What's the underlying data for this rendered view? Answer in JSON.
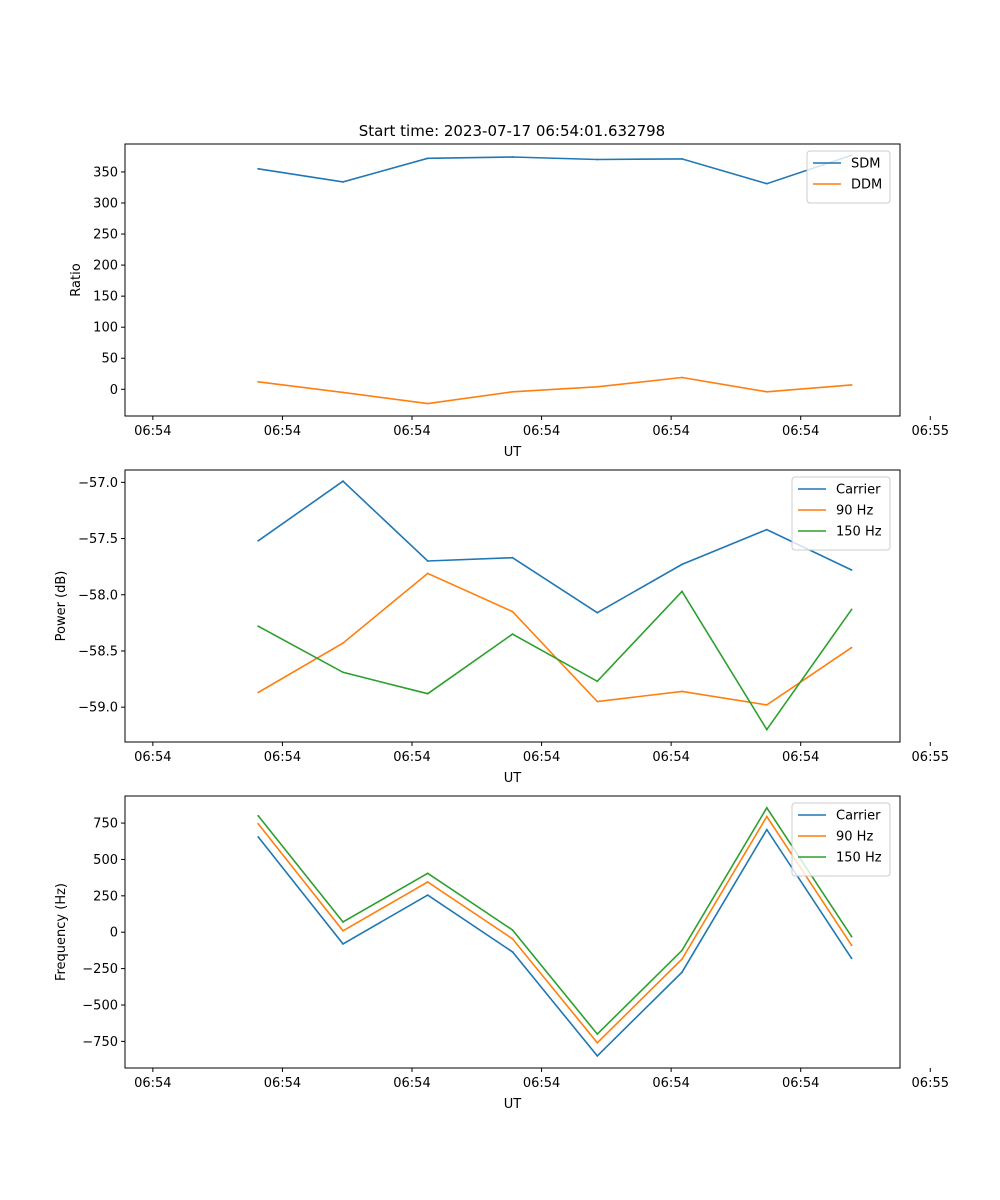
{
  "figure": {
    "title": "Start time: 2023-07-17 06:54:01.632798"
  },
  "chart_data": [
    {
      "type": "line",
      "title": "Start time: 2023-07-17 06:54:01.632798",
      "xlabel": "UT",
      "ylabel": "Ratio",
      "x": [
        1.6,
        2.3,
        3.0,
        3.7,
        4.4,
        5.1,
        5.8,
        6.5
      ],
      "xlim": [
        0.5,
        6.9
      ],
      "xticks": [
        0.73,
        1.8,
        2.87,
        3.94,
        5.01,
        6.08,
        7.15
      ],
      "xtick_labels": [
        "06:54",
        "06:54",
        "06:54",
        "06:54",
        "06:54",
        "06:54",
        "06:55"
      ],
      "ylim": [
        -43,
        395
      ],
      "yticks": [
        0,
        50,
        100,
        150,
        200,
        250,
        300,
        350
      ],
      "ytick_labels": [
        "0",
        "50",
        "100",
        "150",
        "200",
        "250",
        "300",
        "350"
      ],
      "legend_position": "top-right",
      "series": [
        {
          "name": "SDM",
          "color": "#1f77b4",
          "values": [
            355,
            334,
            372,
            374,
            370,
            371,
            331,
            377
          ]
        },
        {
          "name": "DDM",
          "color": "#ff7f0e",
          "values": [
            12,
            -5,
            -23,
            -4,
            4,
            19,
            -4,
            7
          ]
        }
      ]
    },
    {
      "type": "line",
      "xlabel": "UT",
      "ylabel": "Power (dB)",
      "x": [
        1.6,
        2.3,
        3.0,
        3.7,
        4.4,
        5.1,
        5.8,
        6.5
      ],
      "xlim": [
        0.5,
        6.9
      ],
      "xticks": [
        0.73,
        1.8,
        2.87,
        3.94,
        5.01,
        6.08,
        7.15
      ],
      "xtick_labels": [
        "06:54",
        "06:54",
        "06:54",
        "06:54",
        "06:54",
        "06:54",
        "06:55"
      ],
      "ylim": [
        -59.31,
        -56.89
      ],
      "yticks": [
        -59.0,
        -58.5,
        -58.0,
        -57.5,
        -57.0
      ],
      "ytick_labels": [
        "−59.0",
        "−58.5",
        "−58.0",
        "−57.5",
        "−57.0"
      ],
      "legend_position": "top-right",
      "series": [
        {
          "name": "Carrier",
          "color": "#1f77b4",
          "values": [
            -57.52,
            -56.99,
            -57.7,
            -57.67,
            -58.16,
            -57.73,
            -57.42,
            -57.78
          ]
        },
        {
          "name": "90 Hz",
          "color": "#ff7f0e",
          "values": [
            -58.87,
            -58.43,
            -57.81,
            -58.15,
            -58.95,
            -58.86,
            -58.98,
            -58.47
          ]
        },
        {
          "name": "150 Hz",
          "color": "#2ca02c",
          "values": [
            -58.28,
            -58.69,
            -58.88,
            -58.35,
            -58.77,
            -57.97,
            -59.2,
            -58.13
          ]
        }
      ]
    },
    {
      "type": "line",
      "xlabel": "UT",
      "ylabel": "Frequency (Hz)",
      "x": [
        1.6,
        2.3,
        3.0,
        3.7,
        4.4,
        5.1,
        5.8,
        6.5
      ],
      "xlim": [
        0.5,
        6.9
      ],
      "xticks": [
        0.73,
        1.8,
        2.87,
        3.94,
        5.01,
        6.08,
        7.15
      ],
      "xtick_labels": [
        "06:54",
        "06:54",
        "06:54",
        "06:54",
        "06:54",
        "06:54",
        "06:55"
      ],
      "ylim": [
        -933,
        936
      ],
      "yticks": [
        -750,
        -500,
        -250,
        0,
        250,
        500,
        750
      ],
      "ytick_labels": [
        "−750",
        "−500",
        "−250",
        "0",
        "250",
        "500",
        "750"
      ],
      "legend_position": "top-right",
      "series": [
        {
          "name": "Carrier",
          "color": "#1f77b4",
          "values": [
            655,
            -80,
            255,
            -135,
            -850,
            -275,
            705,
            -180
          ]
        },
        {
          "name": "90 Hz",
          "color": "#ff7f0e",
          "values": [
            745,
            10,
            345,
            -45,
            -760,
            -185,
            795,
            -90
          ]
        },
        {
          "name": "150 Hz",
          "color": "#2ca02c",
          "values": [
            800,
            70,
            405,
            15,
            -700,
            -125,
            855,
            -30
          ]
        }
      ]
    }
  ]
}
